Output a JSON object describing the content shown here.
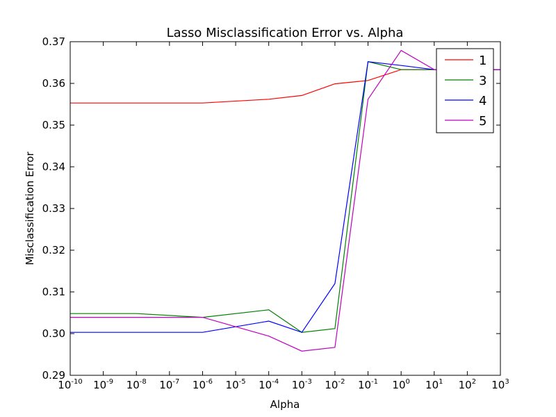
{
  "chart_data": {
    "type": "line",
    "title": "Lasso Misclassification Error vs. Alpha",
    "xlabel": "Alpha",
    "ylabel": "Misclassification Error",
    "x_scale": "log",
    "xlim": [
      1e-10,
      1000
    ],
    "ylim": [
      0.29,
      0.37
    ],
    "x_ticks": [
      {
        "base": "10",
        "exp": "-10"
      },
      {
        "base": "10",
        "exp": "-9"
      },
      {
        "base": "10",
        "exp": "-8"
      },
      {
        "base": "10",
        "exp": "-7"
      },
      {
        "base": "10",
        "exp": "-6"
      },
      {
        "base": "10",
        "exp": "-5"
      },
      {
        "base": "10",
        "exp": "-4"
      },
      {
        "base": "10",
        "exp": "-3"
      },
      {
        "base": "10",
        "exp": "-2"
      },
      {
        "base": "10",
        "exp": "-1"
      },
      {
        "base": "10",
        "exp": "0"
      },
      {
        "base": "10",
        "exp": "1"
      },
      {
        "base": "10",
        "exp": "2"
      },
      {
        "base": "10",
        "exp": "3"
      }
    ],
    "y_ticks": [
      "0.29",
      "0.30",
      "0.31",
      "0.32",
      "0.33",
      "0.34",
      "0.35",
      "0.36",
      "0.37"
    ],
    "x": [
      1e-10,
      1e-08,
      1e-06,
      0.0001,
      0.001,
      0.01,
      0.1,
      1,
      10,
      1000
    ],
    "series": [
      {
        "name": "1",
        "color": "#ff0000",
        "values": [
          0.3553,
          0.3553,
          0.3553,
          0.3562,
          0.3571,
          0.3599,
          0.3607,
          0.3633,
          0.3633,
          0.3633
        ]
      },
      {
        "name": "3",
        "color": "#008000",
        "values": [
          0.3048,
          0.3048,
          0.3039,
          0.3057,
          0.3003,
          0.3012,
          0.3652,
          0.3633,
          0.3633,
          0.3633
        ]
      },
      {
        "name": "4",
        "color": "#0000ff",
        "values": [
          0.3003,
          0.3003,
          0.3003,
          0.303,
          0.3003,
          0.312,
          0.3652,
          0.3643,
          0.3633,
          0.3633
        ]
      },
      {
        "name": "5",
        "color": "#bf00bf",
        "values": [
          0.3039,
          0.3039,
          0.3039,
          0.2994,
          0.2958,
          0.2967,
          0.3562,
          0.3679,
          0.3633,
          0.3633
        ]
      }
    ],
    "grid": false,
    "legend_position": "top-right"
  }
}
